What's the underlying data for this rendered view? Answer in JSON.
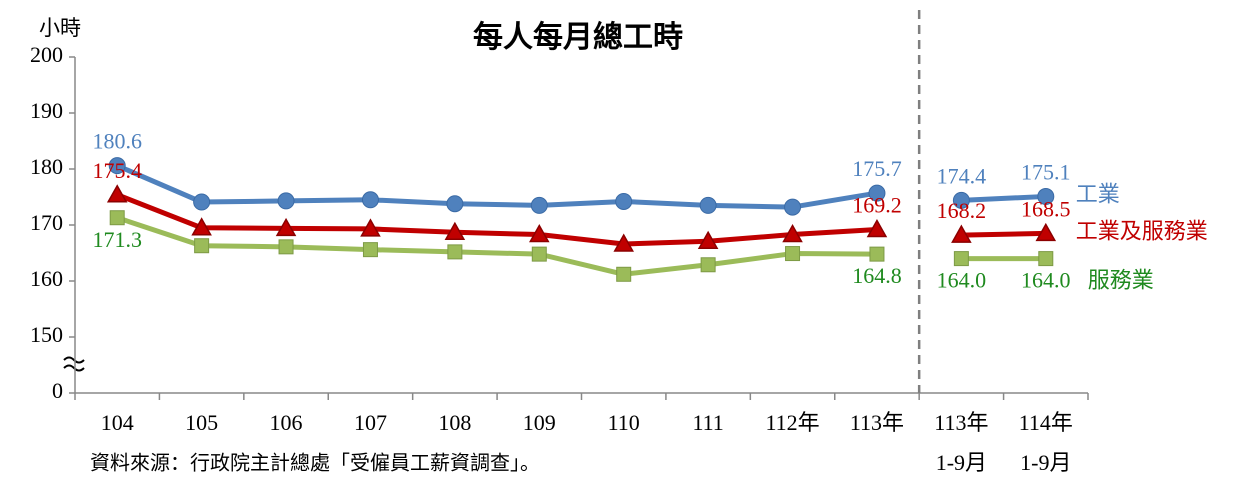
{
  "chart_data": {
    "type": "line",
    "title": "每人每月總工時",
    "y_label": "小時",
    "source": "資料來源：行政院主計總處「受僱員工薪資調查」。",
    "categories": [
      "104",
      "105",
      "106",
      "107",
      "108",
      "109",
      "110",
      "111",
      "112年",
      "113年",
      [
        "113年",
        "1-9月"
      ],
      [
        "114年",
        "1-9月"
      ]
    ],
    "ylim": [
      0,
      200
    ],
    "yticks": [
      0,
      150,
      160,
      170,
      180,
      190,
      200
    ],
    "y_break": true,
    "divider": true,
    "series": [
      {
        "name": "工業",
        "color": "#4f81bd",
        "label_color": "#4f81bd",
        "marker": "circle",
        "values": [
          180.6,
          174.1,
          174.3,
          174.5,
          173.8,
          173.5,
          174.2,
          173.5,
          173.2,
          175.7,
          174.4,
          175.1
        ],
        "value_labels": [
          "180.6",
          null,
          null,
          null,
          null,
          null,
          null,
          null,
          null,
          "175.7",
          "174.4",
          "175.1"
        ]
      },
      {
        "name": "工業及服務業",
        "color": "#c00000",
        "label_color": "#c00000",
        "marker": "triangle",
        "values": [
          175.4,
          169.5,
          169.4,
          169.3,
          168.7,
          168.3,
          166.6,
          167.1,
          168.3,
          169.2,
          168.2,
          168.5
        ],
        "value_labels": [
          "175.4",
          null,
          null,
          null,
          null,
          null,
          null,
          null,
          null,
          "169.2",
          "168.2",
          "168.5"
        ]
      },
      {
        "name": "服務業",
        "color": "#9bbb59",
        "label_color": "#1f8a1f",
        "marker": "square",
        "values": [
          171.3,
          166.3,
          166.1,
          165.6,
          165.2,
          164.8,
          161.2,
          162.9,
          164.9,
          164.8,
          164,
          164
        ],
        "value_labels": [
          "171.3",
          null,
          null,
          null,
          null,
          null,
          null,
          null,
          null,
          "164.8",
          "164.0",
          "164.0"
        ]
      }
    ]
  }
}
